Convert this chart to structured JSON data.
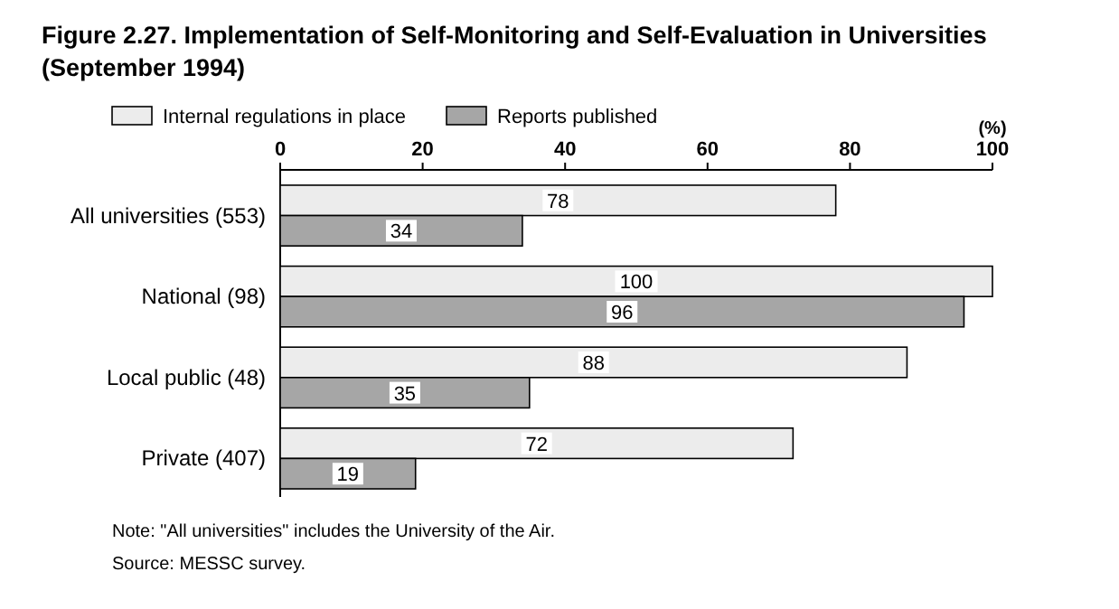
{
  "chart_data": {
    "type": "bar",
    "orientation": "horizontal",
    "title": "Figure 2.27. Implementation of Self-Monitoring and Self-Evaluation in Universities (September 1994)",
    "categories": [
      "All universities (553)",
      "National (98)",
      "Local public (48)",
      "Private (407)"
    ],
    "series": [
      {
        "name": "Internal regulations in place",
        "color": "#ececec",
        "values": [
          78,
          100,
          88,
          72
        ]
      },
      {
        "name": "Reports published",
        "color": "#a6a6a6",
        "values": [
          34,
          96,
          35,
          19
        ]
      }
    ],
    "xlabel": "(%)",
    "xlim": [
      0,
      100
    ],
    "xticks": [
      0,
      20,
      40,
      60,
      80,
      100
    ],
    "data_labels": true,
    "legend": "top",
    "annotations": [
      "Note: \"All universities\" includes the University of the Air.",
      "Source: MESSC survey."
    ]
  }
}
